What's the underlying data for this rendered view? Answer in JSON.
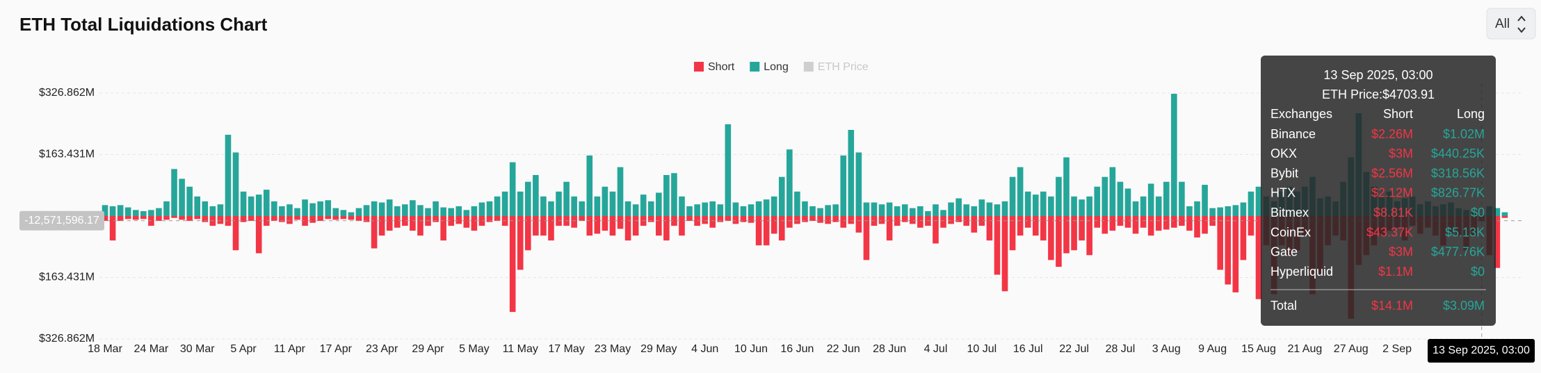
{
  "controls": {
    "range": "All"
  },
  "chart_data": {
    "type": "bar",
    "title": "ETH Total Liquidations Chart",
    "categories": [
      "18 Mar",
      null,
      null,
      null,
      null,
      null,
      "24 Mar",
      null,
      null,
      null,
      null,
      null,
      "30 Mar",
      null,
      null,
      null,
      null,
      null,
      "5 Apr",
      null,
      null,
      null,
      null,
      null,
      "11 Apr",
      null,
      null,
      null,
      null,
      null,
      "17 Apr",
      null,
      null,
      null,
      null,
      null,
      "23 Apr",
      null,
      null,
      null,
      null,
      null,
      "29 Apr",
      null,
      null,
      null,
      null,
      null,
      "5 May",
      null,
      null,
      null,
      null,
      null,
      "11 May",
      null,
      null,
      null,
      null,
      null,
      "17 May",
      null,
      null,
      null,
      null,
      null,
      "23 May",
      null,
      null,
      null,
      null,
      null,
      "29 May",
      null,
      null,
      null,
      null,
      null,
      "4 Jun",
      null,
      null,
      null,
      null,
      null,
      "10 Jun",
      null,
      null,
      null,
      null,
      null,
      "16 Jun",
      null,
      null,
      null,
      null,
      null,
      "22 Jun",
      null,
      null,
      null,
      null,
      null,
      "28 Jun",
      null,
      null,
      null,
      null,
      null,
      "4 Jul",
      null,
      null,
      null,
      null,
      null,
      "10 Jul",
      null,
      null,
      null,
      null,
      null,
      "16 Jul",
      null,
      null,
      null,
      null,
      null,
      "22 Jul",
      null,
      null,
      null,
      null,
      null,
      "28 Jul",
      null,
      null,
      null,
      null,
      null,
      "3 Aug",
      null,
      null,
      null,
      null,
      null,
      "9 Aug",
      null,
      null,
      null,
      null,
      null,
      "15 Aug",
      null,
      null,
      null,
      null,
      null,
      "21 Aug",
      null,
      null,
      null,
      null,
      null,
      "27 Aug",
      null,
      null,
      null,
      null,
      null,
      "2 Sep",
      null,
      null,
      null,
      null,
      null,
      null,
      null,
      null,
      null,
      null,
      null,
      null,
      null,
      null
    ],
    "series": [
      {
        "name": "Short",
        "color": "#f23645",
        "values": [
          -13,
          -65,
          -13,
          -8,
          -10,
          -8,
          -26,
          -13,
          -10,
          -5,
          -10,
          -13,
          -8,
          -16,
          -26,
          -21,
          -26,
          -91,
          -16,
          -13,
          -99,
          -26,
          -13,
          -16,
          -21,
          -10,
          -26,
          -18,
          -13,
          -8,
          -10,
          -8,
          -10,
          -13,
          -16,
          -86,
          -52,
          -39,
          -31,
          -26,
          -39,
          -52,
          -26,
          -16,
          -65,
          -26,
          -21,
          -31,
          -39,
          -26,
          -16,
          -13,
          -26,
          -255,
          -143,
          -91,
          -52,
          -52,
          -65,
          -26,
          -26,
          -31,
          -13,
          -52,
          -47,
          -39,
          -52,
          -34,
          -65,
          -52,
          -26,
          -16,
          -52,
          -65,
          -26,
          -52,
          -13,
          -26,
          -21,
          -31,
          -16,
          -13,
          -21,
          -16,
          -18,
          -78,
          -78,
          -47,
          -65,
          -31,
          -21,
          -16,
          -13,
          -18,
          -21,
          -16,
          -31,
          -21,
          -44,
          -117,
          -26,
          -21,
          -65,
          -26,
          -16,
          -21,
          -31,
          -26,
          -73,
          -31,
          -21,
          -16,
          -26,
          -44,
          -26,
          -65,
          -156,
          -200,
          -91,
          -52,
          -31,
          -52,
          -65,
          -117,
          -135,
          -99,
          -91,
          -65,
          -104,
          -31,
          -47,
          -39,
          -26,
          -31,
          -47,
          -31,
          -52,
          -39,
          -36,
          -31,
          -26,
          -39,
          -57,
          -47,
          -26,
          -143,
          -182,
          -203,
          -117,
          -52,
          -221,
          -78,
          -208,
          -78,
          -104,
          -91,
          -52,
          -208,
          -156,
          -78,
          -52,
          -65,
          -273,
          -130,
          -104,
          -78,
          -52,
          -39,
          -31,
          -65,
          -26,
          -47,
          -31,
          -52,
          -78,
          -47,
          -52,
          -91,
          -52,
          -14.1,
          -104,
          -138,
          -5
        ]
      },
      {
        "name": "Long",
        "color": "#26a69a",
        "values": [
          29,
          26,
          29,
          23,
          16,
          13,
          16,
          21,
          39,
          125,
          99,
          78,
          52,
          39,
          26,
          31,
          216,
          169,
          65,
          52,
          57,
          70,
          39,
          26,
          31,
          21,
          44,
          34,
          39,
          42,
          21,
          16,
          10,
          21,
          29,
          39,
          36,
          44,
          26,
          31,
          42,
          29,
          21,
          39,
          23,
          21,
          26,
          16,
          26,
          36,
          39,
          52,
          65,
          143,
          65,
          91,
          109,
          52,
          39,
          65,
          91,
          52,
          39,
          161,
          52,
          78,
          65,
          130,
          39,
          31,
          57,
          39,
          62,
          109,
          114,
          52,
          26,
          31,
          36,
          39,
          31,
          244,
          36,
          26,
          31,
          39,
          44,
          52,
          104,
          177,
          65,
          39,
          26,
          21,
          29,
          31,
          161,
          229,
          169,
          36,
          36,
          31,
          36,
          26,
          31,
          21,
          26,
          13,
          31,
          16,
          36,
          47,
          31,
          26,
          44,
          36,
          31,
          39,
          104,
          130,
          65,
          57,
          65,
          52,
          104,
          156,
          52,
          44,
          52,
          78,
          104,
          130,
          91,
          73,
          39,
          52,
          86,
          52,
          91,
          325,
          91,
          26,
          39,
          83,
          21,
          23,
          26,
          29,
          36,
          65,
          78,
          52,
          39,
          65,
          78,
          65,
          78,
          104,
          47,
          52,
          39,
          91,
          156,
          273,
          117,
          78,
          52,
          65,
          39,
          47,
          52,
          31,
          39,
          26,
          31,
          36,
          21,
          16,
          10,
          3.09,
          26,
          21,
          10
        ]
      }
    ],
    "inactive_series": [
      {
        "name": "ETH Price",
        "color": "#cfcfcf"
      }
    ],
    "ylim": [
      -326.862,
      326.862
    ],
    "yticks": [
      {
        "value": -326.862,
        "label": "$326.862M"
      },
      {
        "value": -163.431,
        "label": "$163.431M"
      },
      {
        "value": 163.431,
        "label": "$163.431M"
      },
      {
        "value": 326.862,
        "label": "$326.862M"
      }
    ],
    "grid": true,
    "legend": "top",
    "crosshair": {
      "index": 179,
      "x_label": "13 Sep 2025, 03:00",
      "y": {
        "value": -12.57159617,
        "label": "-12,571,596.17"
      }
    },
    "tooltip": {
      "title": "13 Sep 2025, 03:00",
      "price": "ETH Price:$4703.91",
      "header": [
        "Exchanges",
        "Short",
        "Long"
      ],
      "rows": [
        [
          "Binance",
          "$2.26M",
          "$1.02M"
        ],
        [
          "OKX",
          "$3M",
          "$440.25K"
        ],
        [
          "Bybit",
          "$2.56M",
          "$318.56K"
        ],
        [
          "HTX",
          "$2.12M",
          "$826.77K"
        ],
        [
          "Bitmex",
          "$8.81K",
          "$0"
        ],
        [
          "CoinEx",
          "$43.37K",
          "$5.13K"
        ],
        [
          "Gate",
          "$3M",
          "$477.76K"
        ],
        [
          "Hyperliquid",
          "$1.1M",
          "$0"
        ]
      ],
      "total": [
        "Total",
        "$14.1M",
        "$3.09M"
      ]
    }
  }
}
